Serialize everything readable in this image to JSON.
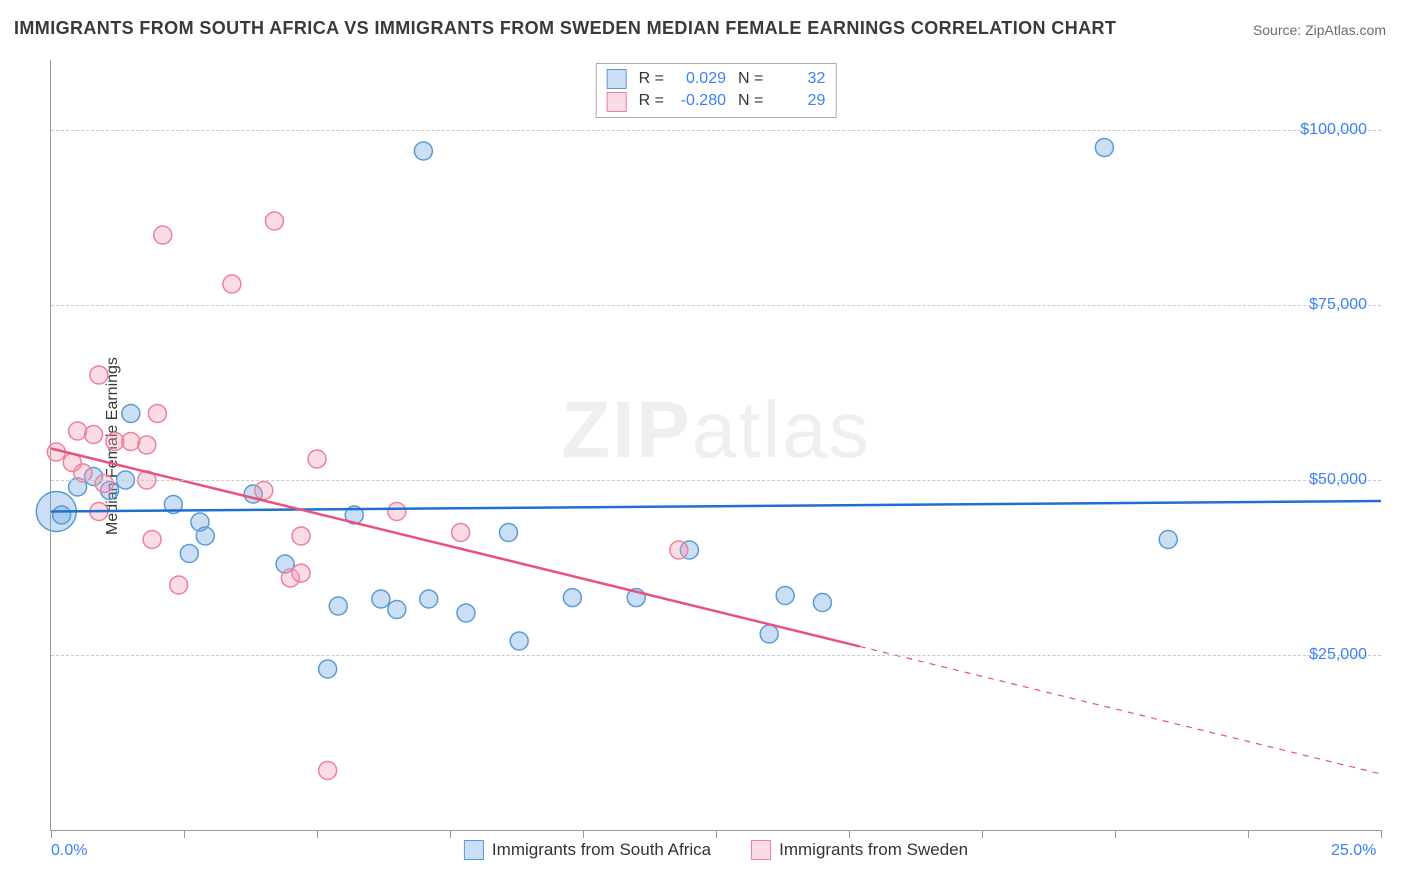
{
  "title": "IMMIGRANTS FROM SOUTH AFRICA VS IMMIGRANTS FROM SWEDEN MEDIAN FEMALE EARNINGS CORRELATION CHART",
  "source": "Source: ZipAtlas.com",
  "yaxis_title": "Median Female Earnings",
  "watermark_bold": "ZIP",
  "watermark_rest": "atlas",
  "chart": {
    "type": "scatter-correlation",
    "xlim": [
      0,
      25
    ],
    "ylim": [
      0,
      110000
    ],
    "xticks_at": [
      0,
      2.5,
      5,
      7.5,
      10,
      12.5,
      15,
      17.5,
      20,
      22.5,
      25
    ],
    "xtick_labels": [
      {
        "at": 0,
        "text": "0.0%"
      },
      {
        "at": 25,
        "text": "25.0%"
      }
    ],
    "ytick_labels": [
      {
        "at": 25000,
        "text": "$25,000"
      },
      {
        "at": 50000,
        "text": "$50,000"
      },
      {
        "at": 75000,
        "text": "$75,000"
      },
      {
        "at": 100000,
        "text": "$100,000"
      }
    ],
    "background_color": "#ffffff",
    "grid_color": "#c9c9c9",
    "axis_color": "#999999",
    "marker_radius": 9,
    "marker_stroke_width": 1.5,
    "line_width": 2.5,
    "series": [
      {
        "name": "Immigrants from South Africa",
        "color_fill": "rgba(102,163,224,0.35)",
        "color_stroke": "#5b9bd5",
        "line_color": "#1f6fd0",
        "R": "0.029",
        "N": "32",
        "trend": {
          "x1": 0,
          "y1": 45500,
          "x2": 25,
          "y2": 47000,
          "solid_until": 25
        },
        "big_marker": {
          "x": 0.1,
          "y": 45500,
          "r": 20
        },
        "points": [
          {
            "x": 0.2,
            "y": 45000
          },
          {
            "x": 0.5,
            "y": 49000
          },
          {
            "x": 0.8,
            "y": 50500
          },
          {
            "x": 1.1,
            "y": 48500
          },
          {
            "x": 1.4,
            "y": 50000
          },
          {
            "x": 1.5,
            "y": 59500
          },
          {
            "x": 2.3,
            "y": 46500
          },
          {
            "x": 2.6,
            "y": 39500
          },
          {
            "x": 2.8,
            "y": 44000
          },
          {
            "x": 2.9,
            "y": 42000
          },
          {
            "x": 3.8,
            "y": 48000
          },
          {
            "x": 4.4,
            "y": 38000
          },
          {
            "x": 5.2,
            "y": 23000
          },
          {
            "x": 5.4,
            "y": 32000
          },
          {
            "x": 5.7,
            "y": 45000
          },
          {
            "x": 6.2,
            "y": 33000
          },
          {
            "x": 6.5,
            "y": 31500
          },
          {
            "x": 7.0,
            "y": 97000
          },
          {
            "x": 7.1,
            "y": 33000
          },
          {
            "x": 7.8,
            "y": 31000
          },
          {
            "x": 8.6,
            "y": 42500
          },
          {
            "x": 8.8,
            "y": 27000
          },
          {
            "x": 9.8,
            "y": 33200
          },
          {
            "x": 11.0,
            "y": 33200
          },
          {
            "x": 12.0,
            "y": 40000
          },
          {
            "x": 13.5,
            "y": 28000
          },
          {
            "x": 13.8,
            "y": 33500
          },
          {
            "x": 14.5,
            "y": 32500
          },
          {
            "x": 19.8,
            "y": 97500
          },
          {
            "x": 21.0,
            "y": 41500
          }
        ]
      },
      {
        "name": "Immigrants from Sweden",
        "color_fill": "rgba(244,154,177,0.35)",
        "color_stroke": "#ec809f",
        "line_color": "#e6537e",
        "R": "-0.280",
        "N": "29",
        "trend": {
          "x1": 0,
          "y1": 54500,
          "x2": 25,
          "y2": 8000,
          "solid_until": 15.2
        },
        "points": [
          {
            "x": 0.1,
            "y": 54000
          },
          {
            "x": 0.4,
            "y": 52500
          },
          {
            "x": 0.5,
            "y": 57000
          },
          {
            "x": 0.6,
            "y": 51000
          },
          {
            "x": 0.8,
            "y": 56500
          },
          {
            "x": 0.9,
            "y": 65000
          },
          {
            "x": 0.9,
            "y": 45500
          },
          {
            "x": 1.0,
            "y": 49500
          },
          {
            "x": 1.2,
            "y": 55500
          },
          {
            "x": 1.5,
            "y": 55500
          },
          {
            "x": 1.8,
            "y": 55000
          },
          {
            "x": 1.8,
            "y": 50000
          },
          {
            "x": 1.9,
            "y": 41500
          },
          {
            "x": 2.0,
            "y": 59500
          },
          {
            "x": 2.1,
            "y": 85000
          },
          {
            "x": 2.4,
            "y": 35000
          },
          {
            "x": 3.4,
            "y": 78000
          },
          {
            "x": 4.0,
            "y": 48500
          },
          {
            "x": 4.2,
            "y": 87000
          },
          {
            "x": 4.5,
            "y": 36000
          },
          {
            "x": 4.7,
            "y": 36700
          },
          {
            "x": 4.7,
            "y": 42000
          },
          {
            "x": 5.0,
            "y": 53000
          },
          {
            "x": 5.2,
            "y": 8500
          },
          {
            "x": 6.5,
            "y": 45500
          },
          {
            "x": 7.7,
            "y": 42500
          },
          {
            "x": 11.8,
            "y": 40000
          }
        ]
      }
    ]
  },
  "legend_bottom": [
    {
      "label": "Immigrants from South Africa",
      "fill": "rgba(102,163,224,0.35)",
      "stroke": "#5b9bd5"
    },
    {
      "label": "Immigrants from Sweden",
      "fill": "rgba(244,154,177,0.35)",
      "stroke": "#ec809f"
    }
  ]
}
